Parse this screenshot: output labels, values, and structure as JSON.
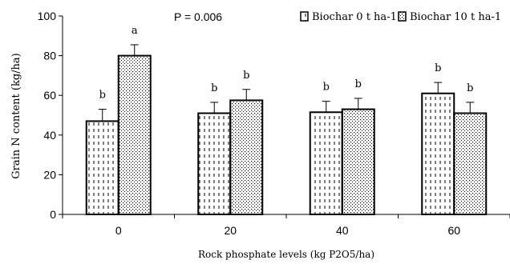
{
  "chart_data": {
    "type": "bar",
    "title": "",
    "xlabel": "Rock phosphate levels (kg P2O5/ha)",
    "ylabel": "Grain N content (kg/ha)",
    "categories": [
      "0",
      "20",
      "40",
      "60"
    ],
    "ylim": [
      0,
      100
    ],
    "yticks": [
      "0",
      "20",
      "40",
      "60",
      "80",
      "100"
    ],
    "annotation": "P = 0.006",
    "legend_position": "top-right",
    "grid": false,
    "series": [
      {
        "name": "Biochar 0 t ha-1",
        "pattern": "vertical-dashes",
        "values": [
          47,
          51,
          51.5,
          61
        ],
        "errors": [
          6,
          5.5,
          5.5,
          5.5
        ],
        "letters": [
          "b",
          "b",
          "b",
          "b"
        ]
      },
      {
        "name": "Biochar 10 t ha-1",
        "pattern": "dots",
        "values": [
          80,
          57.5,
          53,
          51
        ],
        "errors": [
          5.5,
          5.5,
          5.5,
          5.5
        ],
        "letters": [
          "a",
          "b",
          "b",
          "b"
        ]
      }
    ],
    "colors": {
      "bar_fill": "#ffffff",
      "bar_stroke": "#000000",
      "pattern": "#000000"
    }
  }
}
